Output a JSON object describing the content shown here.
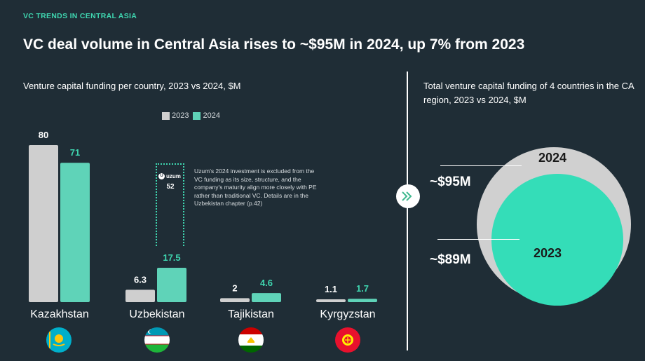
{
  "header": {
    "eyebrow": "VC TRENDS IN CENTRAL ASIA",
    "headline": "VC deal volume in Central Asia rises to ~$95M in 2024, up 7% from 2023"
  },
  "colors": {
    "series_2023": "#cfcfcf",
    "series_2024": "#5fd3b8",
    "accent": "#3fd6b0",
    "background": "#1f2d36"
  },
  "chart_data": [
    {
      "type": "bar",
      "title": "Venture capital funding per country, 2023 vs 2024, $M",
      "categories": [
        "Kazakhstan",
        "Uzbekistan",
        "Tajikistan",
        "Kyrgyzstan"
      ],
      "series": [
        {
          "name": "2023",
          "values": [
            80,
            6.3,
            2,
            1.1
          ],
          "labels": [
            "80",
            "6.3",
            "2",
            "1.1"
          ]
        },
        {
          "name": "2024",
          "values": [
            71,
            17.5,
            4.6,
            1.7
          ],
          "labels": [
            "71",
            "17.5",
            "4.6",
            "1.7"
          ]
        }
      ],
      "ylim": [
        0,
        80
      ],
      "legend": "top-center",
      "grid": false,
      "annotation": {
        "logo_text": "uzum",
        "value": 52,
        "value_label": "52",
        "note": "Uzum's 2024 investment is excluded from the VC funding as its size, structure, and the company's maturity align more closely with PE rather than traditional VC. Details are in the Uzbekistan chapter (p.42)"
      }
    },
    {
      "type": "bubble",
      "title": "Total venture capital funding of 4 countries in the CA region, 2023 vs 2024, $M",
      "categories": [
        "2024",
        "2023"
      ],
      "values": [
        95,
        89
      ],
      "labels": [
        "~$95M",
        "~$89M"
      ]
    }
  ],
  "flags": [
    {
      "country": "Kazakhstan",
      "icon": "kazakhstan-flag-icon"
    },
    {
      "country": "Uzbekistan",
      "icon": "uzbekistan-flag-icon"
    },
    {
      "country": "Tajikistan",
      "icon": "tajikistan-flag-icon"
    },
    {
      "country": "Kyrgyzstan",
      "icon": "kyrgyzstan-flag-icon"
    }
  ]
}
